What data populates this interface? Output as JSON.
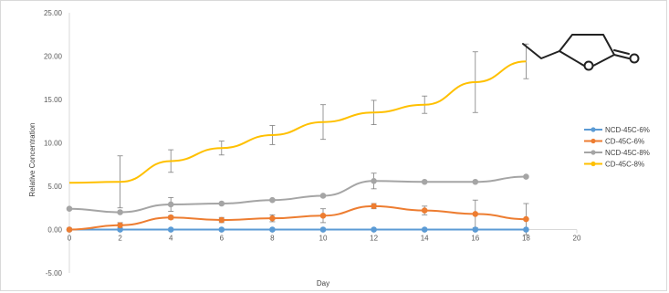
{
  "chart_data": {
    "type": "line",
    "title": "",
    "xlabel": "Day",
    "ylabel": "Relative Concentration",
    "xlim": [
      0,
      20
    ],
    "ylim": [
      -5,
      25
    ],
    "x_ticks": [
      "0",
      "2",
      "4",
      "6",
      "8",
      "10",
      "12",
      "14",
      "16",
      "18",
      "20"
    ],
    "y_ticks": [
      "-5.00",
      "0.00",
      "5.00",
      "10.00",
      "15.00",
      "20.00",
      "25.00"
    ],
    "grid": false,
    "legend_position": "right",
    "x": [
      0,
      2,
      4,
      6,
      8,
      10,
      12,
      14,
      16,
      18
    ],
    "series": [
      {
        "name": "NCD-45C-6%",
        "color": "#5b9bd5",
        "values": [
          0.0,
          0.0,
          0.0,
          0.0,
          0.0,
          0.0,
          0.0,
          0.0,
          0.0,
          0.0
        ],
        "errors": [
          0,
          0,
          0,
          0,
          0,
          0,
          0,
          0,
          0,
          0
        ]
      },
      {
        "name": "CD-45C-6%",
        "color": "#ed7d31",
        "values": [
          0.0,
          0.5,
          1.4,
          1.1,
          1.3,
          1.6,
          2.7,
          2.2,
          1.8,
          1.2
        ],
        "errors": [
          0,
          0.3,
          0.2,
          0.3,
          0.4,
          0.8,
          0.3,
          0.5,
          1.6,
          1.8
        ]
      },
      {
        "name": "NCD-45C-8%",
        "color": "#a5a5a5",
        "values": [
          2.4,
          2.0,
          2.9,
          3.0,
          3.4,
          3.9,
          5.6,
          5.5,
          5.5,
          6.1
        ],
        "errors": [
          0,
          0,
          0.8,
          0,
          0,
          0,
          0.9,
          0,
          0,
          0
        ]
      },
      {
        "name": "CD-45C-8%",
        "color": "#ffc000",
        "values": [
          5.4,
          5.5,
          7.9,
          9.4,
          10.9,
          12.4,
          13.5,
          14.4,
          17.0,
          19.4
        ],
        "errors": [
          0,
          3.0,
          1.3,
          0.8,
          1.1,
          2.0,
          1.4,
          1.0,
          3.5,
          2.0
        ]
      }
    ]
  },
  "molecule_icon": "gamma-lactone-structure"
}
